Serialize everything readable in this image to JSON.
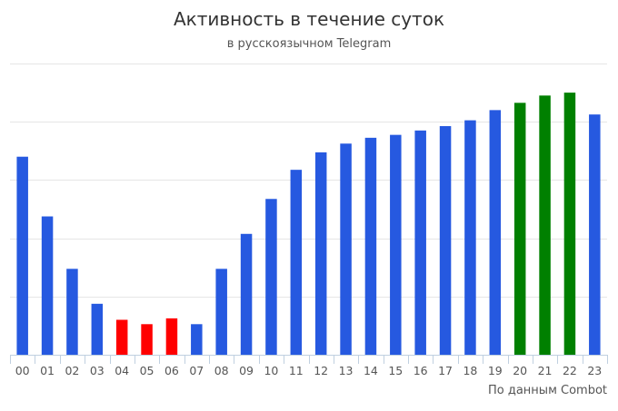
{
  "chart_data": {
    "type": "bar",
    "title": "Активность в течение суток",
    "subtitle": "в русскоязычном Telegram",
    "credit": "По данным Combot",
    "xlabel": "",
    "ylabel": "",
    "categories": [
      "00",
      "01",
      "02",
      "03",
      "04",
      "05",
      "06",
      "07",
      "08",
      "09",
      "10",
      "11",
      "12",
      "13",
      "14",
      "15",
      "16",
      "17",
      "18",
      "19",
      "20",
      "21",
      "22",
      "23"
    ],
    "values": [
      68,
      47.5,
      29.5,
      17.5,
      12,
      10.5,
      12.5,
      10.5,
      29.5,
      41.5,
      53.5,
      63.5,
      69.5,
      72.5,
      74.5,
      75.5,
      77,
      78.5,
      80.5,
      84,
      86.5,
      89,
      90,
      82.5
    ],
    "colors": [
      "#2659e0",
      "#2659e0",
      "#2659e0",
      "#2659e0",
      "#ff0000",
      "#ff0000",
      "#ff0000",
      "#2659e0",
      "#2659e0",
      "#2659e0",
      "#2659e0",
      "#2659e0",
      "#2659e0",
      "#2659e0",
      "#2659e0",
      "#2659e0",
      "#2659e0",
      "#2659e0",
      "#2659e0",
      "#2659e0",
      "#008000",
      "#008000",
      "#008000",
      "#2659e0"
    ],
    "ylim": [
      0,
      100
    ],
    "y_gridlines": [
      0,
      20,
      40,
      60,
      80,
      100
    ],
    "grid": true,
    "legend": "none"
  }
}
